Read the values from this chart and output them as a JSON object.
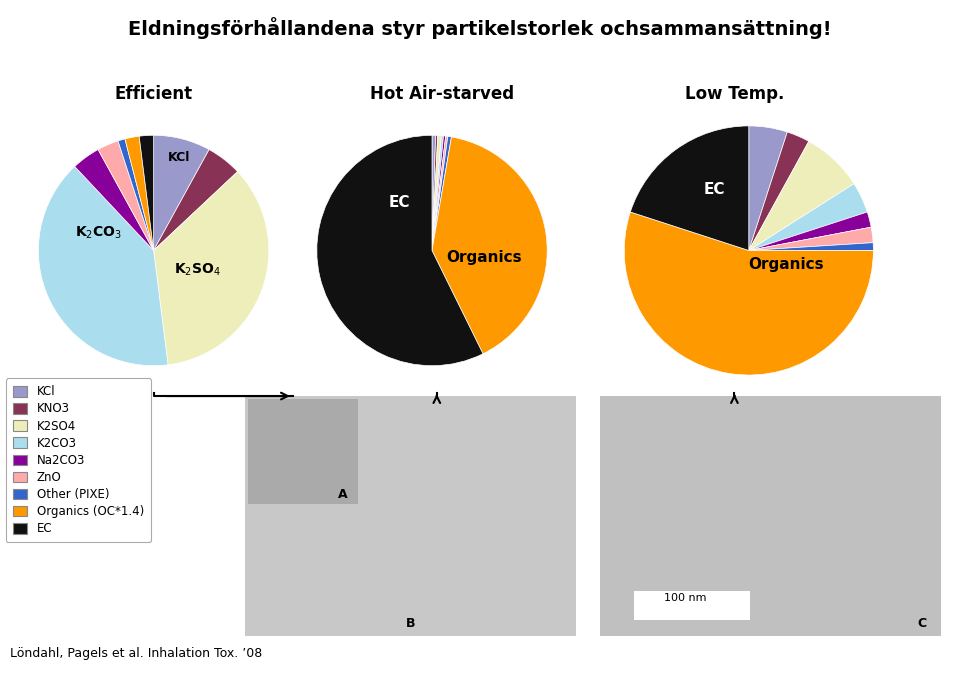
{
  "title": "Eldningsförhållandena styr partikelstorlek ochsammansättning!",
  "subtitle_efficient": "Efficient",
  "subtitle_hot": "Hot Air-starved",
  "subtitle_low": "Low Temp.",
  "colors": {
    "KCl": "#9999cc",
    "KNO3": "#883355",
    "K2SO4": "#eeeebb",
    "K2CO3": "#aaddee",
    "Na2CO3": "#880099",
    "ZnO": "#ffaaaa",
    "Other": "#3366cc",
    "Organics": "#ff9900",
    "EC": "#111111"
  },
  "pie_efficient": {
    "values": [
      8,
      5,
      35,
      40,
      4,
      3,
      1,
      2,
      2
    ]
  },
  "pie_hot": {
    "values": [
      0.5,
      0.3,
      0.5,
      0.3,
      0.3,
      0.3,
      0.5,
      40,
      57.3
    ]
  },
  "pie_low": {
    "values": [
      5,
      3,
      8,
      4,
      2,
      2,
      1,
      55,
      20
    ]
  },
  "legend_labels": [
    "KCl",
    "KNO3",
    "K2SO4",
    "K2CO3",
    "Na2CO3",
    "ZnO",
    "Other (PIXE)",
    "Organics (OC*1.4)",
    "EC"
  ],
  "footer": "Löndahl, Pagels et al. Inhalation Tox. ’08",
  "img_bg": "#b0b0b0"
}
